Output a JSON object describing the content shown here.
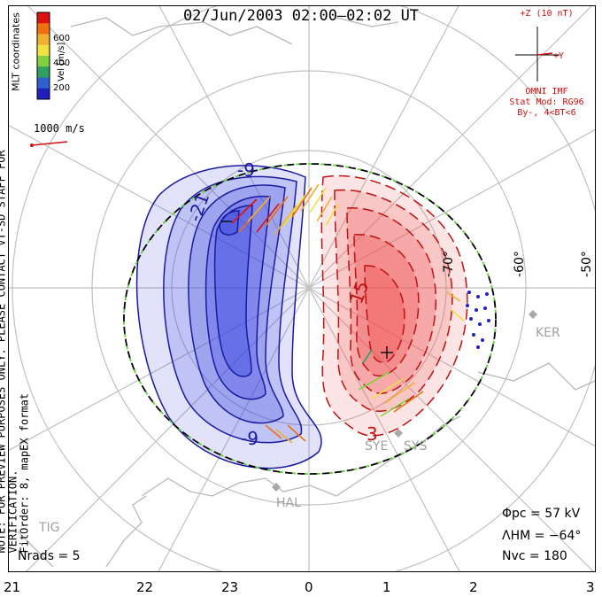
{
  "title": "02/Jun/2003 02:00–02:02 UT",
  "coordinates_label": "MLT coordinates",
  "note_line1": "NOTE: FOR PREVIEW PURPOSES ONLY. PLEASE CONTACT VT-SD STAFF FOR VERIFICATION.",
  "note_line2": "FitOrder: 8, mapEX format",
  "velocity_scale": {
    "unit_label": "Vel [m/s]",
    "ticks": [
      "600",
      "400",
      "200"
    ],
    "colors": [
      "#e01010",
      "#f07010",
      "#f0b030",
      "#f0e040",
      "#80d040",
      "#30a060",
      "#3060d0",
      "#2020c0"
    ],
    "reference_vector": "1000 m/s"
  },
  "imf": {
    "z_label": "+Z (10 nT)",
    "y_label": "+Y",
    "source": "OMNI IMF",
    "model": "Stat Mod: RG96",
    "conditions": "By-, 4<BT<6"
  },
  "latitude_labels": [
    "-70°",
    "-60°",
    "-50°"
  ],
  "contour_labels": [
    "-9",
    "-21",
    "-9",
    "15",
    "3"
  ],
  "stations": [
    "KER",
    "SYE",
    "SYS",
    "HAL",
    "TIG"
  ],
  "stats": {
    "phi_pc": "Φpc = 57 kV",
    "lambda_hm": "ΛHM = −64°",
    "n_vc": "Nvc = 180",
    "n_rads": "Nrads = 5"
  },
  "mlt_ticks": [
    "21",
    "22",
    "23",
    "0",
    "1",
    "2",
    "3"
  ],
  "colors": {
    "negative_fill": "#3a46e0",
    "positive_fill": "#f05050",
    "negative_line": "#1a1aa0",
    "positive_line": "#c01010",
    "coast": "#b8b8b8",
    "grid": "#c0c0c0"
  }
}
